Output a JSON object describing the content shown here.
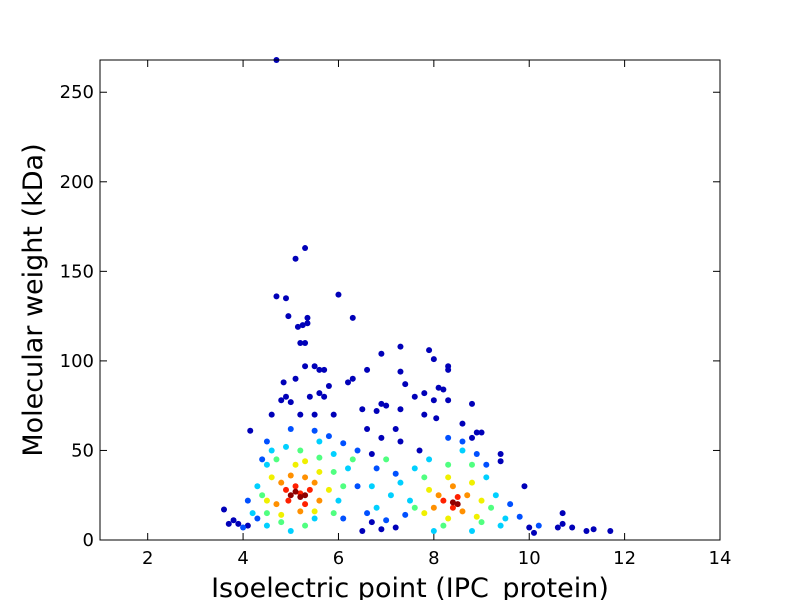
{
  "chart_data": {
    "type": "scatter",
    "xlabel": "Isoelectric point (IPC_protein)",
    "ylabel": "Molecular weight (kDa)",
    "xlim": [
      1,
      14
    ],
    "ylim": [
      0,
      268
    ],
    "xticks": [
      2,
      4,
      6,
      8,
      10,
      12,
      14
    ],
    "yticks": [
      0,
      50,
      100,
      150,
      200,
      250
    ],
    "series": [
      {
        "color": "#0000b8",
        "x": [
          4.7,
          5.1,
          5.3,
          4.7,
          4.9,
          6.0,
          6.3,
          5.35,
          5.35,
          5.15,
          5.25,
          4.95,
          5.2,
          5.3,
          7.3,
          6.9,
          7.9,
          8.0,
          8.3,
          8.3,
          5.3,
          5.5,
          5.6,
          5.7,
          6.6,
          7.3,
          6.3,
          6.2,
          5.1,
          4.85,
          7.4,
          8.2,
          8.1,
          5.8,
          5.6,
          5.4,
          5.7,
          4.9,
          4.8,
          5.0,
          7.6,
          7.8,
          8.0,
          8.3,
          6.9,
          7.0,
          7.3,
          8.8,
          6.8,
          6.5,
          4.6,
          5.2,
          5.5,
          5.9,
          7.8,
          8.05,
          8.6,
          8.9,
          9.0,
          8.8,
          9.4,
          9.4,
          9.9,
          4.15,
          6.6,
          7.2,
          6.9,
          7.3,
          7.7,
          6.7,
          10.7,
          10.7,
          10.9,
          11.2,
          11.35,
          11.7,
          10.6,
          10.0,
          10.1,
          3.7,
          3.6,
          3.9,
          3.8,
          4.1,
          6.7,
          7.2,
          6.9,
          6.5
        ],
        "values": [
          268,
          157,
          163,
          136,
          135,
          137,
          124,
          124,
          121,
          119,
          120,
          125,
          110,
          110,
          108,
          104,
          106,
          101,
          97,
          95,
          97,
          97,
          95,
          95,
          95,
          94,
          90,
          88,
          90,
          88,
          87,
          84,
          85,
          86,
          82,
          80,
          80,
          80,
          78,
          77,
          80,
          82,
          78,
          78,
          76,
          75,
          73,
          76,
          72,
          73,
          70,
          70,
          70,
          70,
          70,
          68,
          65,
          60,
          60,
          57,
          48,
          44,
          30,
          61,
          62,
          62,
          57,
          55,
          50,
          48,
          15,
          9,
          7,
          5,
          6,
          5,
          7,
          7,
          4,
          9,
          17,
          9,
          11,
          8,
          10,
          7,
          6,
          5
        ]
      },
      {
        "color": "#0050ff",
        "x": [
          4.5,
          5.5,
          5.8,
          6.1,
          6.4,
          8.6,
          8.3,
          9.1,
          9.6,
          9.8,
          10.2,
          4.3,
          4.1,
          6.6,
          7.0,
          7.4,
          6.8,
          7.2,
          6.4,
          6.1,
          8.9,
          4.4,
          5.0,
          4.0
        ],
        "values": [
          55,
          61,
          58,
          54,
          50,
          55,
          57,
          42,
          20,
          13,
          8,
          12,
          22,
          15,
          11,
          14,
          40,
          37,
          30,
          12,
          48,
          45,
          62,
          7
        ]
      },
      {
        "color": "#00d0ff",
        "x": [
          4.5,
          4.9,
          5.6,
          5.9,
          6.2,
          6.7,
          7.1,
          7.5,
          7.6,
          7.9,
          8.6,
          9.1,
          9.3,
          9.5,
          9.4,
          4.3,
          4.2,
          4.5,
          5.0,
          6.0,
          6.8,
          7.3,
          8.0,
          8.8,
          5.5,
          4.6
        ],
        "values": [
          42,
          52,
          55,
          48,
          40,
          30,
          25,
          22,
          40,
          45,
          50,
          35,
          25,
          12,
          8,
          30,
          15,
          8,
          5,
          22,
          18,
          32,
          5,
          5,
          12,
          50
        ]
      },
      {
        "color": "#50ff80",
        "x": [
          4.7,
          5.2,
          5.6,
          5.9,
          6.1,
          4.4,
          4.5,
          5.3,
          7.8,
          8.3,
          8.8,
          9.2,
          9.0,
          8.2,
          7.6,
          5.9,
          4.8,
          6.3,
          7.0
        ],
        "values": [
          45,
          50,
          46,
          38,
          30,
          25,
          15,
          8,
          35,
          42,
          42,
          18,
          10,
          8,
          18,
          15,
          10,
          45,
          45
        ]
      },
      {
        "color": "#f0f000",
        "x": [
          4.6,
          5.1,
          5.6,
          5.8,
          4.5,
          4.8,
          5.5,
          7.9,
          8.3,
          8.8,
          9.0,
          8.9,
          8.3,
          7.8,
          5.3
        ],
        "values": [
          35,
          42,
          38,
          28,
          22,
          14,
          16,
          28,
          35,
          32,
          22,
          13,
          12,
          15,
          44
        ]
      },
      {
        "color": "#ff9000",
        "x": [
          4.8,
          5.0,
          5.5,
          5.6,
          4.7,
          5.2,
          8.1,
          8.4,
          8.7,
          8.6,
          8.0,
          5.3
        ],
        "values": [
          32,
          36,
          32,
          22,
          20,
          16,
          25,
          30,
          25,
          16,
          18,
          35
        ]
      },
      {
        "color": "#ff2000",
        "x": [
          4.9,
          5.1,
          5.4,
          5.3,
          4.95,
          8.2,
          8.5,
          8.4,
          5.2
        ],
        "values": [
          28,
          30,
          28,
          20,
          22,
          22,
          24,
          18,
          26
        ]
      },
      {
        "color": "#900000",
        "x": [
          5.0,
          5.2,
          5.1,
          5.3,
          8.4,
          8.5
        ],
        "values": [
          25,
          24,
          27,
          25,
          21,
          20
        ]
      }
    ]
  }
}
